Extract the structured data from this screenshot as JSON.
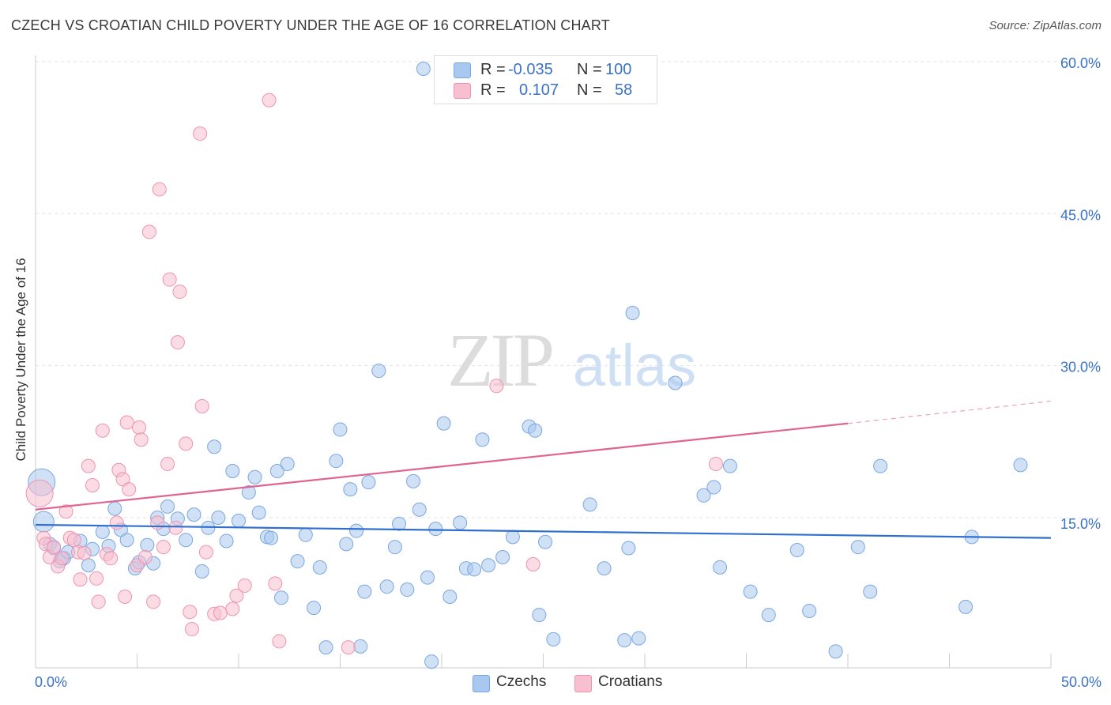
{
  "title": "CZECH VS CROATIAN CHILD POVERTY UNDER THE AGE OF 16 CORRELATION CHART",
  "source": "Source: ZipAtlas.com",
  "watermark": {
    "zip": "ZIP",
    "atlas": "atlas"
  },
  "stats": [
    {
      "r_label": "R =",
      "r_value": "-0.035",
      "n_label": "N =",
      "n_value": "100",
      "color": "#a9c8ef",
      "border": "#7aa7e0"
    },
    {
      "r_label": "R =",
      "r_value": "0.107",
      "n_label": "N =",
      "n_value": "58",
      "color": "#f7bfd0",
      "border": "#ee93b0"
    }
  ],
  "legend": [
    {
      "label": "Czechs",
      "color": "#a9c8ef",
      "border": "#7aa7e0"
    },
    {
      "label": "Croatians",
      "color": "#f7bfd0",
      "border": "#ee93b0"
    }
  ],
  "x_axis": {
    "min_label": "0.0%",
    "max_label": "50.0%"
  },
  "chart_data": {
    "type": "scatter",
    "title": "CZECH VS CROATIAN CHILD POVERTY UNDER THE AGE OF 16 CORRELATION CHART",
    "xlabel": "",
    "ylabel": "Child Poverty Under the Age of 16",
    "xlim": [
      0,
      50
    ],
    "ylim": [
      0,
      62
    ],
    "y_ticks": [
      15,
      30,
      45,
      60
    ],
    "y_tick_labels": [
      "15.0%",
      "30.0%",
      "45.0%",
      "60.0%"
    ],
    "grid": true,
    "legend_position": "bottom-center",
    "series": [
      {
        "name": "Czechs",
        "color": "#7aa7e0",
        "fill": "#a9c8ef",
        "trend": {
          "x": [
            0,
            50
          ],
          "y": [
            14.3,
            13.0
          ],
          "color": "#2f6fd0"
        },
        "points": [
          [
            0.3,
            18.5
          ],
          [
            0.4,
            14.6
          ],
          [
            0.7,
            12.4
          ],
          [
            0.9,
            12.0
          ],
          [
            1.2,
            10.7
          ],
          [
            1.4,
            11.0
          ],
          [
            1.6,
            11.6
          ],
          [
            2.2,
            12.7
          ],
          [
            2.6,
            10.3
          ],
          [
            2.8,
            11.9
          ],
          [
            3.3,
            13.6
          ],
          [
            3.6,
            12.2
          ],
          [
            3.9,
            15.9
          ],
          [
            4.2,
            13.8
          ],
          [
            4.5,
            12.8
          ],
          [
            4.9,
            10.0
          ],
          [
            5.1,
            10.6
          ],
          [
            5.5,
            12.3
          ],
          [
            5.8,
            10.5
          ],
          [
            6.0,
            15.0
          ],
          [
            6.3,
            13.9
          ],
          [
            6.5,
            16.1
          ],
          [
            7.0,
            14.9
          ],
          [
            7.4,
            12.8
          ],
          [
            7.8,
            15.3
          ],
          [
            8.2,
            9.7
          ],
          [
            8.5,
            14.0
          ],
          [
            8.8,
            22.0
          ],
          [
            9.0,
            15.0
          ],
          [
            9.4,
            12.7
          ],
          [
            9.7,
            19.6
          ],
          [
            10.0,
            14.7
          ],
          [
            10.5,
            17.5
          ],
          [
            10.8,
            19.0
          ],
          [
            11.0,
            15.5
          ],
          [
            11.4,
            13.1
          ],
          [
            11.6,
            13.0
          ],
          [
            11.9,
            19.6
          ],
          [
            12.1,
            7.1
          ],
          [
            12.4,
            20.3
          ],
          [
            12.9,
            10.7
          ],
          [
            13.3,
            13.3
          ],
          [
            13.7,
            6.1
          ],
          [
            14.0,
            10.1
          ],
          [
            14.3,
            2.2
          ],
          [
            14.8,
            20.6
          ],
          [
            15.0,
            23.7
          ],
          [
            15.3,
            12.4
          ],
          [
            15.5,
            17.8
          ],
          [
            15.8,
            13.7
          ],
          [
            16.0,
            2.3
          ],
          [
            16.2,
            7.7
          ],
          [
            16.4,
            18.5
          ],
          [
            16.9,
            29.5
          ],
          [
            17.3,
            8.2
          ],
          [
            17.7,
            12.1
          ],
          [
            17.9,
            14.4
          ],
          [
            18.3,
            7.9
          ],
          [
            18.6,
            18.6
          ],
          [
            18.9,
            15.8
          ],
          [
            19.3,
            9.1
          ],
          [
            19.1,
            59.3
          ],
          [
            19.5,
            0.8
          ],
          [
            19.7,
            13.9
          ],
          [
            20.1,
            24.3
          ],
          [
            20.4,
            7.2
          ],
          [
            20.9,
            14.5
          ],
          [
            21.2,
            10.0
          ],
          [
            21.6,
            9.9
          ],
          [
            22.0,
            22.7
          ],
          [
            22.3,
            10.3
          ],
          [
            23.0,
            11.1
          ],
          [
            23.5,
            13.1
          ],
          [
            24.3,
            24.0
          ],
          [
            24.6,
            23.6
          ],
          [
            24.8,
            5.4
          ],
          [
            25.1,
            12.6
          ],
          [
            25.5,
            3.0
          ],
          [
            27.3,
            16.3
          ],
          [
            28.0,
            10.0
          ],
          [
            29.0,
            2.9
          ],
          [
            29.2,
            12.0
          ],
          [
            29.4,
            35.2
          ],
          [
            29.7,
            3.1
          ],
          [
            31.5,
            28.3
          ],
          [
            32.9,
            17.2
          ],
          [
            33.4,
            18.0
          ],
          [
            33.7,
            10.1
          ],
          [
            34.2,
            20.1
          ],
          [
            35.2,
            7.7
          ],
          [
            36.1,
            5.4
          ],
          [
            37.5,
            11.8
          ],
          [
            38.1,
            5.8
          ],
          [
            39.4,
            1.8
          ],
          [
            40.5,
            12.1
          ],
          [
            41.1,
            7.7
          ],
          [
            41.6,
            20.1
          ],
          [
            45.8,
            6.2
          ],
          [
            46.1,
            13.1
          ],
          [
            48.5,
            20.2
          ]
        ]
      },
      {
        "name": "Croatians",
        "color": "#ee93b0",
        "fill": "#f7bfd0",
        "trend": {
          "x": [
            0,
            40
          ],
          "y": [
            15.8,
            24.3
          ],
          "color": "#e06391",
          "dashed_extension": {
            "x": [
              40,
              50
            ],
            "y": [
              24.3,
              26.5
            ]
          }
        },
        "points": [
          [
            0.2,
            17.4
          ],
          [
            0.4,
            13.0
          ],
          [
            0.5,
            12.4
          ],
          [
            0.7,
            11.1
          ],
          [
            0.9,
            12.1
          ],
          [
            1.1,
            10.2
          ],
          [
            1.3,
            11.0
          ],
          [
            1.5,
            15.6
          ],
          [
            1.7,
            13.0
          ],
          [
            1.9,
            12.8
          ],
          [
            2.1,
            11.6
          ],
          [
            2.2,
            8.9
          ],
          [
            2.4,
            11.5
          ],
          [
            2.6,
            20.1
          ],
          [
            2.8,
            18.2
          ],
          [
            3.0,
            9.0
          ],
          [
            3.1,
            6.7
          ],
          [
            3.3,
            23.6
          ],
          [
            3.5,
            11.4
          ],
          [
            3.7,
            11.0
          ],
          [
            4.0,
            14.5
          ],
          [
            4.1,
            19.7
          ],
          [
            4.3,
            18.8
          ],
          [
            4.4,
            7.2
          ],
          [
            4.5,
            24.4
          ],
          [
            4.6,
            17.8
          ],
          [
            5.0,
            10.3
          ],
          [
            5.1,
            23.9
          ],
          [
            5.2,
            22.7
          ],
          [
            5.4,
            11.1
          ],
          [
            5.6,
            43.2
          ],
          [
            5.8,
            6.7
          ],
          [
            6.0,
            14.5
          ],
          [
            6.1,
            47.4
          ],
          [
            6.3,
            12.1
          ],
          [
            6.5,
            20.3
          ],
          [
            6.6,
            38.5
          ],
          [
            6.9,
            14.0
          ],
          [
            7.0,
            32.3
          ],
          [
            7.1,
            37.3
          ],
          [
            7.4,
            22.3
          ],
          [
            7.6,
            5.7
          ],
          [
            7.7,
            4.0
          ],
          [
            8.1,
            52.9
          ],
          [
            8.2,
            26.0
          ],
          [
            8.4,
            11.6
          ],
          [
            8.8,
            5.5
          ],
          [
            9.1,
            5.6
          ],
          [
            9.7,
            6.0
          ],
          [
            9.9,
            7.3
          ],
          [
            10.3,
            8.3
          ],
          [
            11.5,
            56.2
          ],
          [
            11.8,
            8.5
          ],
          [
            12.0,
            2.8
          ],
          [
            15.4,
            2.2
          ],
          [
            22.7,
            28.0
          ],
          [
            24.5,
            10.4
          ],
          [
            33.5,
            20.3
          ]
        ]
      }
    ]
  }
}
